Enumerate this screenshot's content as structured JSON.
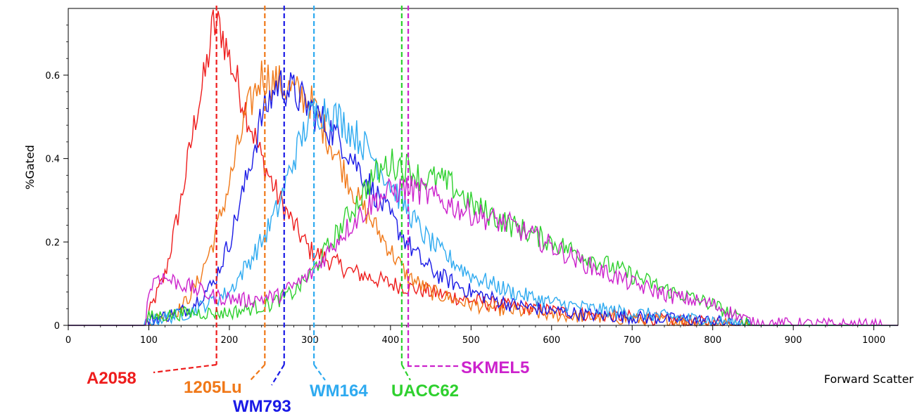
{
  "chart_data": {
    "type": "line",
    "xlabel": "Forward Scatter",
    "ylabel": "%Gated",
    "xlim": [
      0,
      1030
    ],
    "ylim": [
      0,
      0.76
    ],
    "xticks": [
      0,
      100,
      200,
      300,
      400,
      500,
      600,
      700,
      800,
      900,
      1000
    ],
    "xtick_labels": [
      "0",
      "100",
      "200",
      "300",
      "400",
      "500",
      "600",
      "700",
      "800",
      "900",
      "1000"
    ],
    "yticks": [
      0,
      0.2,
      0.4,
      0.6
    ],
    "ytick_labels": [
      "0",
      "0.2",
      "0.4",
      "0.6"
    ],
    "grid": false,
    "series": [
      {
        "name": "A2058",
        "color": "#ee1c1c",
        "marker_x": 184,
        "x": [
          0,
          95,
          100,
          120,
          140,
          160,
          170,
          180,
          190,
          200,
          220,
          240,
          260,
          280,
          300,
          350,
          400,
          450,
          500,
          550,
          600,
          650,
          700,
          750,
          800,
          830,
          850,
          1030
        ],
        "y": [
          0,
          0,
          0.03,
          0.12,
          0.3,
          0.52,
          0.6,
          0.72,
          0.71,
          0.64,
          0.52,
          0.4,
          0.31,
          0.24,
          0.18,
          0.13,
          0.1,
          0.08,
          0.06,
          0.045,
          0.035,
          0.025,
          0.02,
          0.012,
          0.006,
          0.002,
          0,
          0
        ]
      },
      {
        "name": "1205Lu",
        "color": "#f07818",
        "marker_x": 244,
        "x": [
          0,
          95,
          100,
          140,
          160,
          180,
          200,
          220,
          240,
          260,
          280,
          300,
          320,
          340,
          360,
          380,
          400,
          420,
          450,
          500,
          550,
          600,
          650,
          700,
          750,
          800,
          850,
          1030
        ],
        "y": [
          0,
          0,
          0.01,
          0.04,
          0.1,
          0.2,
          0.34,
          0.5,
          0.6,
          0.58,
          0.56,
          0.54,
          0.46,
          0.38,
          0.3,
          0.24,
          0.18,
          0.12,
          0.08,
          0.05,
          0.035,
          0.025,
          0.02,
          0.015,
          0.01,
          0.005,
          0,
          0
        ]
      },
      {
        "name": "WM793",
        "color": "#1a1ae6",
        "marker_x": 268,
        "x": [
          0,
          95,
          100,
          150,
          180,
          200,
          220,
          240,
          260,
          280,
          300,
          320,
          340,
          360,
          380,
          400,
          420,
          440,
          460,
          480,
          500,
          550,
          600,
          650,
          700,
          750,
          800,
          850,
          1030
        ],
        "y": [
          0,
          0,
          0.01,
          0.04,
          0.1,
          0.2,
          0.34,
          0.5,
          0.58,
          0.56,
          0.52,
          0.48,
          0.44,
          0.38,
          0.32,
          0.26,
          0.2,
          0.15,
          0.12,
          0.1,
          0.08,
          0.05,
          0.035,
          0.025,
          0.02,
          0.015,
          0.01,
          0,
          0
        ]
      },
      {
        "name": "WM164",
        "color": "#2eaaf0",
        "marker_x": 305,
        "x": [
          0,
          95,
          100,
          150,
          200,
          220,
          240,
          260,
          280,
          300,
          320,
          340,
          360,
          380,
          400,
          420,
          440,
          460,
          480,
          500,
          550,
          600,
          650,
          700,
          750,
          800,
          850,
          1030
        ],
        "y": [
          0,
          0,
          0.01,
          0.03,
          0.08,
          0.14,
          0.2,
          0.28,
          0.4,
          0.5,
          0.52,
          0.49,
          0.45,
          0.4,
          0.34,
          0.28,
          0.22,
          0.18,
          0.15,
          0.12,
          0.08,
          0.055,
          0.04,
          0.03,
          0.02,
          0.012,
          0,
          0
        ]
      },
      {
        "name": "UACC62",
        "color": "#2ed02e",
        "marker_x": 414,
        "x": [
          0,
          95,
          100,
          150,
          200,
          250,
          280,
          300,
          320,
          340,
          360,
          380,
          400,
          420,
          440,
          460,
          480,
          500,
          520,
          550,
          600,
          650,
          700,
          750,
          800,
          830,
          850,
          1030
        ],
        "y": [
          0,
          0,
          0.02,
          0.03,
          0.03,
          0.05,
          0.08,
          0.12,
          0.18,
          0.24,
          0.3,
          0.36,
          0.39,
          0.38,
          0.35,
          0.35,
          0.33,
          0.29,
          0.27,
          0.24,
          0.2,
          0.16,
          0.12,
          0.08,
          0.05,
          0.02,
          0,
          0
        ]
      },
      {
        "name": "SKMEL5",
        "color": "#cc22cc",
        "marker_x": 422,
        "x": [
          0,
          95,
          100,
          110,
          140,
          180,
          220,
          260,
          300,
          320,
          340,
          360,
          380,
          400,
          420,
          440,
          460,
          500,
          550,
          600,
          650,
          700,
          750,
          800,
          830,
          850,
          1030
        ],
        "y": [
          0,
          0,
          0.08,
          0.12,
          0.1,
          0.07,
          0.06,
          0.07,
          0.12,
          0.17,
          0.22,
          0.26,
          0.3,
          0.32,
          0.33,
          0.32,
          0.3,
          0.27,
          0.24,
          0.19,
          0.14,
          0.1,
          0.07,
          0.05,
          0.025,
          0.005,
          0
        ]
      }
    ]
  }
}
